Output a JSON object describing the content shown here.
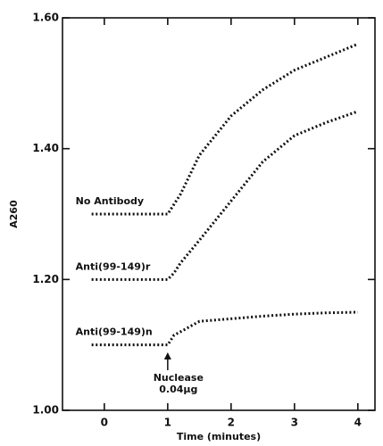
{
  "chart_data": {
    "type": "line",
    "x_label": "Time (minutes)",
    "y_label": "A260",
    "xlim": [
      -0.66,
      4.27
    ],
    "xticks": [
      0,
      1,
      2,
      3,
      4
    ],
    "ylim": [
      1.0,
      1.6
    ],
    "yticks": [
      {
        "value": 1.0,
        "label": "1.00"
      },
      {
        "value": 1.2,
        "label": "1.20"
      },
      {
        "value": 1.4,
        "label": "1.40"
      },
      {
        "value": 1.6,
        "label": "1.60"
      }
    ],
    "x": [
      -0.2,
      1,
      1.1,
      1.2,
      1.5,
      2,
      2.5,
      3,
      3.5,
      4
    ],
    "series": [
      {
        "name": "No Antibody",
        "color": "#111111",
        "values": [
          1.3,
          1.3,
          1.315,
          1.33,
          1.39,
          1.45,
          1.49,
          1.52,
          1.54,
          1.56
        ]
      },
      {
        "name": "Anti(99-149)r",
        "color": "#111111",
        "values": [
          1.2,
          1.2,
          1.21,
          1.225,
          1.26,
          1.32,
          1.38,
          1.42,
          1.44,
          1.457
        ]
      },
      {
        "name": "Anti(99-149)n",
        "color": "#111111",
        "values": [
          1.1,
          1.1,
          1.115,
          1.12,
          1.136,
          1.14,
          1.144,
          1.147,
          1.149,
          1.15
        ]
      }
    ],
    "annotation": {
      "lines": [
        "Nuclease",
        "0.04μg"
      ],
      "x": 1
    }
  }
}
